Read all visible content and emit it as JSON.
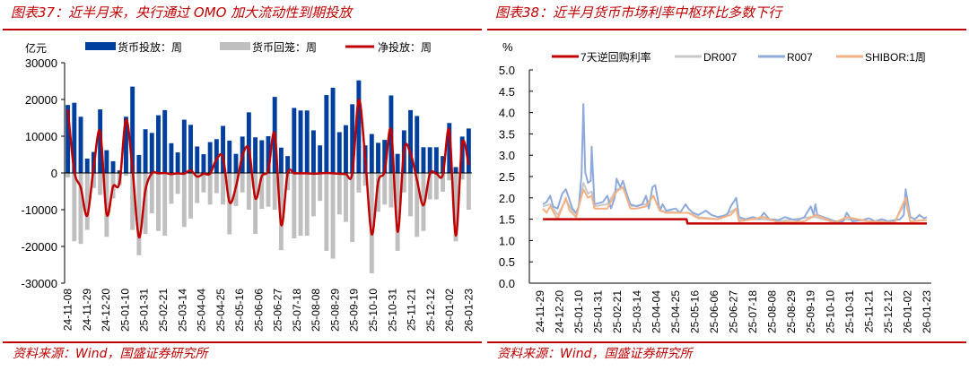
{
  "left": {
    "title": "图表37：近半月来，央行通过 OMO 加大流动性到期投放",
    "source": "资料来源：Wind，国盛证券研究所"
  },
  "right": {
    "title": "图表38：近半月货币市场利率中枢环比多数下行",
    "source": "资料来源：Wind，国盛证券研究所"
  },
  "chart_data": [
    {
      "type": "bar",
      "ylabel": "亿元",
      "ylim": [
        -30000,
        30000
      ],
      "yticks": [
        -30000,
        -20000,
        -10000,
        0,
        10000,
        20000,
        30000
      ],
      "xticklabels": [
        "24-11-08",
        "24-11-29",
        "24-12-20",
        "25-01-10",
        "25-01-31",
        "25-02-21",
        "25-03-14",
        "25-04-04",
        "25-04-25",
        "25-05-16",
        "25-06-06",
        "25-06-27",
        "25-07-18",
        "25-08-08",
        "25-08-29",
        "25-09-19",
        "25-10-10",
        "25-10-31",
        "25-11-21",
        "25-12-12",
        "26-01-02",
        "26-01-23"
      ],
      "legend_position": "top",
      "grid": false,
      "series": [
        {
          "name": "货币投放：周",
          "kind": "bar",
          "color": "#003f9e",
          "values": [
            18500,
            19100,
            15300,
            3900,
            5700,
            17300,
            6200,
            3200,
            700,
            15300,
            23500,
            4900,
            11900,
            10900,
            15700,
            17100,
            8100,
            5600,
            14500,
            13100,
            7200,
            5100,
            8400,
            9200,
            12800,
            8800,
            5200,
            9900,
            16500,
            9700,
            8900,
            10000,
            20700,
            6900,
            4600,
            17700,
            17000,
            17000,
            11600,
            7500,
            21200,
            23200,
            11100,
            13000,
            18700,
            25200,
            7500,
            10600,
            8200,
            9000,
            21100,
            5200,
            11600,
            17100,
            15500,
            7000,
            7000,
            7000,
            4600,
            13600,
            1600,
            9900,
            12100
          ]
        },
        {
          "name": "货币回笼：周",
          "kind": "bar",
          "color": "#bfbfbf",
          "values": [
            -1200,
            -18600,
            -19300,
            -15500,
            -4100,
            -6000,
            -17400,
            -6900,
            -3300,
            -800,
            -15500,
            -22400,
            -16600,
            -11000,
            -15800,
            -17100,
            -8400,
            -5700,
            -14700,
            -12400,
            -8200,
            -5300,
            -8600,
            -5500,
            -8600,
            -16700,
            -9000,
            -5300,
            -10000,
            -16600,
            -9800,
            -9200,
            -10000,
            -21000,
            -4700,
            -17800,
            -17100,
            -17100,
            -11800,
            -7600,
            -21200,
            -23300,
            -11300,
            -13300,
            -18800,
            -5300,
            -3500,
            -27300,
            -10600,
            -8600,
            -9400,
            -21200,
            -5300,
            -11800,
            -17400,
            -15800,
            -7200,
            -7200,
            -5100,
            -2000,
            -18600,
            -1800,
            -10000
          ]
        },
        {
          "name": "净投放：周",
          "kind": "line",
          "color": "#c00000",
          "values": [
            17300,
            500,
            -4000,
            -11600,
            1600,
            11300,
            -11200,
            -3700,
            -2600,
            14500,
            1100,
            -17500,
            -4700,
            -100,
            -100,
            0,
            -300,
            -100,
            -200,
            700,
            -1000,
            -200,
            -200,
            3700,
            4200,
            -7900,
            -3800,
            4600,
            6500,
            -6900,
            -900,
            800,
            10700,
            -14100,
            -100,
            -100,
            -100,
            -100,
            -200,
            -100,
            0,
            -100,
            -200,
            -300,
            -100,
            19900,
            4000,
            -16700,
            -2400,
            400,
            11700,
            -16000,
            6300,
            5300,
            -1900,
            -8800,
            -200,
            -200,
            -500,
            11600,
            -17000,
            8100,
            2100
          ]
        }
      ]
    },
    {
      "type": "line",
      "ylabel": "%",
      "ylim": [
        0,
        5
      ],
      "yticks": [
        "0.0",
        "0.5",
        "1.0",
        "1.5",
        "2.0",
        "2.5",
        "3.0",
        "3.5",
        "4.0",
        "4.5",
        "5.0"
      ],
      "xlim": [
        "2024-11-29",
        "2026-01-23"
      ],
      "xticklabels": [
        "24-11-29",
        "24-12-20",
        "25-01-10",
        "25-01-31",
        "25-02-21",
        "25-03-14",
        "25-04-04",
        "25-04-25",
        "25-05-16",
        "25-06-06",
        "25-06-27",
        "25-07-18",
        "25-08-08",
        "25-08-29",
        "25-09-19",
        "25-10-10",
        "25-10-31",
        "25-11-21",
        "25-12-12",
        "26-01-02",
        "26-01-23"
      ],
      "legend_position": "top",
      "grid": false,
      "series": [
        {
          "name": "7天逆回购利率",
          "color": "#c00000",
          "points": [
            [
              "2024-12-02",
              1.5
            ],
            [
              "2025-05-07",
              1.5
            ],
            [
              "2025-05-08",
              1.4
            ],
            [
              "2026-01-23",
              1.4
            ]
          ]
        },
        {
          "name": "DR007",
          "color": "#c8c8c8",
          "points": [
            [
              "2024-12-02",
              1.8
            ],
            [
              "2024-12-10",
              1.85
            ],
            [
              "2024-12-18",
              1.6
            ],
            [
              "2024-12-27",
              1.95
            ],
            [
              "2025-01-03",
              1.7
            ],
            [
              "2025-01-08",
              1.6
            ],
            [
              "2025-01-15",
              2.35
            ],
            [
              "2025-01-20",
              2.1
            ],
            [
              "2025-01-24",
              2.15
            ],
            [
              "2025-01-27",
              1.8
            ],
            [
              "2025-02-10",
              1.85
            ],
            [
              "2025-02-20",
              2.2
            ],
            [
              "2025-02-27",
              2.25
            ],
            [
              "2025-03-07",
              1.8
            ],
            [
              "2025-03-24",
              1.85
            ],
            [
              "2025-04-01",
              2.05
            ],
            [
              "2025-04-08",
              1.7
            ],
            [
              "2025-04-30",
              1.65
            ],
            [
              "2025-05-09",
              1.65
            ],
            [
              "2025-05-20",
              1.55
            ],
            [
              "2025-06-10",
              1.5
            ],
            [
              "2025-06-30",
              1.75
            ],
            [
              "2025-07-03",
              1.5
            ],
            [
              "2025-07-30",
              1.5
            ],
            [
              "2025-08-15",
              1.45
            ],
            [
              "2025-09-19",
              1.55
            ],
            [
              "2025-09-24",
              1.55
            ],
            [
              "2025-10-15",
              1.42
            ],
            [
              "2025-10-28",
              1.5
            ],
            [
              "2025-11-21",
              1.45
            ],
            [
              "2025-12-19",
              1.45
            ],
            [
              "2025-12-31",
              1.9
            ],
            [
              "2026-01-05",
              1.45
            ],
            [
              "2026-01-23",
              1.48
            ]
          ]
        },
        {
          "name": "R007",
          "color": "#8eaadb",
          "points": [
            [
              "2024-12-02",
              1.85
            ],
            [
              "2024-12-06",
              1.9
            ],
            [
              "2024-12-10",
              2.05
            ],
            [
              "2024-12-13",
              1.8
            ],
            [
              "2024-12-18",
              1.75
            ],
            [
              "2024-12-23",
              2.1
            ],
            [
              "2024-12-27",
              2.2
            ],
            [
              "2024-12-31",
              1.95
            ],
            [
              "2025-01-03",
              1.75
            ],
            [
              "2025-01-07",
              1.65
            ],
            [
              "2025-01-10",
              1.8
            ],
            [
              "2025-01-13",
              2.55
            ],
            [
              "2025-01-15",
              4.2
            ],
            [
              "2025-01-17",
              2.6
            ],
            [
              "2025-01-20",
              2.35
            ],
            [
              "2025-01-23",
              2.4
            ],
            [
              "2025-01-24",
              3.2
            ],
            [
              "2025-01-27",
              1.85
            ],
            [
              "2025-02-05",
              1.9
            ],
            [
              "2025-02-10",
              2.05
            ],
            [
              "2025-02-14",
              1.75
            ],
            [
              "2025-02-18",
              2.0
            ],
            [
              "2025-02-20",
              2.45
            ],
            [
              "2025-02-24",
              2.25
            ],
            [
              "2025-02-27",
              2.4
            ],
            [
              "2025-03-03",
              2.1
            ],
            [
              "2025-03-07",
              1.85
            ],
            [
              "2025-03-14",
              1.8
            ],
            [
              "2025-03-20",
              1.85
            ],
            [
              "2025-03-24",
              2.05
            ],
            [
              "2025-03-27",
              1.75
            ],
            [
              "2025-03-31",
              2.25
            ],
            [
              "2025-04-03",
              2.3
            ],
            [
              "2025-04-08",
              1.7
            ],
            [
              "2025-04-11",
              1.85
            ],
            [
              "2025-04-15",
              1.7
            ],
            [
              "2025-04-25",
              1.75
            ],
            [
              "2025-04-30",
              1.65
            ],
            [
              "2025-05-06",
              1.85
            ],
            [
              "2025-05-09",
              1.75
            ],
            [
              "2025-05-14",
              1.65
            ],
            [
              "2025-05-20",
              1.6
            ],
            [
              "2025-05-28",
              1.7
            ],
            [
              "2025-06-03",
              1.6
            ],
            [
              "2025-06-10",
              1.55
            ],
            [
              "2025-06-20",
              1.6
            ],
            [
              "2025-06-24",
              1.8
            ],
            [
              "2025-06-30",
              2.0
            ],
            [
              "2025-07-03",
              1.55
            ],
            [
              "2025-07-10",
              1.5
            ],
            [
              "2025-07-18",
              1.55
            ],
            [
              "2025-07-25",
              1.5
            ],
            [
              "2025-07-30",
              1.65
            ],
            [
              "2025-08-05",
              1.5
            ],
            [
              "2025-08-15",
              1.48
            ],
            [
              "2025-08-22",
              1.55
            ],
            [
              "2025-08-29",
              1.5
            ],
            [
              "2025-09-05",
              1.48
            ],
            [
              "2025-09-12",
              1.55
            ],
            [
              "2025-09-19",
              1.8
            ],
            [
              "2025-09-22",
              1.6
            ],
            [
              "2025-09-24",
              1.85
            ],
            [
              "2025-09-26",
              1.6
            ],
            [
              "2025-10-09",
              1.5
            ],
            [
              "2025-10-15",
              1.45
            ],
            [
              "2025-10-24",
              1.45
            ],
            [
              "2025-10-28",
              1.65
            ],
            [
              "2025-11-03",
              1.45
            ],
            [
              "2025-11-14",
              1.48
            ],
            [
              "2025-11-21",
              1.52
            ],
            [
              "2025-11-28",
              1.45
            ],
            [
              "2025-12-05",
              1.5
            ],
            [
              "2025-12-12",
              1.45
            ],
            [
              "2025-12-19",
              1.48
            ],
            [
              "2025-12-25",
              1.5
            ],
            [
              "2025-12-29",
              1.6
            ],
            [
              "2025-12-31",
              2.2
            ],
            [
              "2026-01-05",
              1.55
            ],
            [
              "2026-01-10",
              1.5
            ],
            [
              "2026-01-15",
              1.6
            ],
            [
              "2026-01-20",
              1.52
            ],
            [
              "2026-01-23",
              1.55
            ]
          ]
        },
        {
          "name": "SHIBOR:1周",
          "color": "#f4b183",
          "points": [
            [
              "2024-12-02",
              1.75
            ],
            [
              "2024-12-06",
              1.65
            ],
            [
              "2024-12-10",
              1.8
            ],
            [
              "2024-12-18",
              1.5
            ],
            [
              "2024-12-27",
              2.0
            ],
            [
              "2024-12-31",
              1.7
            ],
            [
              "2025-01-07",
              1.55
            ],
            [
              "2025-01-15",
              2.2
            ],
            [
              "2025-01-20",
              2.0
            ],
            [
              "2025-01-24",
              2.05
            ],
            [
              "2025-01-27",
              1.75
            ],
            [
              "2025-02-10",
              1.75
            ],
            [
              "2025-02-20",
              2.15
            ],
            [
              "2025-02-27",
              2.25
            ],
            [
              "2025-03-07",
              1.75
            ],
            [
              "2025-03-14",
              1.75
            ],
            [
              "2025-03-24",
              1.8
            ],
            [
              "2025-04-01",
              2.05
            ],
            [
              "2025-04-08",
              1.7
            ],
            [
              "2025-04-15",
              1.65
            ],
            [
              "2025-04-30",
              1.65
            ],
            [
              "2025-05-09",
              1.65
            ],
            [
              "2025-05-20",
              1.52
            ],
            [
              "2025-06-10",
              1.5
            ],
            [
              "2025-06-24",
              1.6
            ],
            [
              "2025-06-30",
              1.75
            ],
            [
              "2025-07-03",
              1.45
            ],
            [
              "2025-07-30",
              1.55
            ],
            [
              "2025-08-15",
              1.42
            ],
            [
              "2025-09-12",
              1.45
            ],
            [
              "2025-09-24",
              1.6
            ],
            [
              "2025-10-15",
              1.42
            ],
            [
              "2025-10-28",
              1.55
            ],
            [
              "2025-11-21",
              1.45
            ],
            [
              "2025-12-19",
              1.42
            ],
            [
              "2025-12-31",
              2.0
            ],
            [
              "2026-01-05",
              1.45
            ],
            [
              "2026-01-23",
              1.48
            ]
          ]
        }
      ]
    }
  ]
}
